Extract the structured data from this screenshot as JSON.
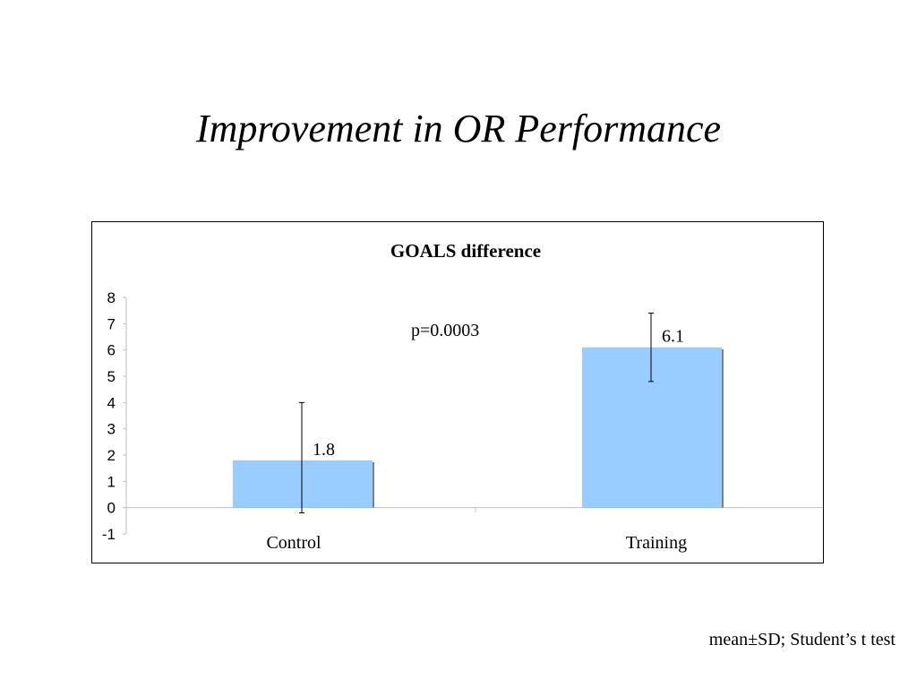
{
  "slide": {
    "title": "Improvement in OR Performance",
    "footnote": "mean±SD; Student’s t test"
  },
  "chart_data": {
    "type": "bar",
    "title": "GOALS difference",
    "categories": [
      "Control",
      "Training"
    ],
    "values": [
      1.8,
      6.1
    ],
    "value_labels": [
      "1.8",
      "6.1"
    ],
    "error_bars": [
      {
        "low": -0.2,
        "high": 4.0
      },
      {
        "low": 4.8,
        "high": 7.4
      }
    ],
    "annotation": "p=0.0003",
    "ylim": [
      -1,
      8
    ],
    "y_ticks": [
      "-1",
      "0",
      "1",
      "2",
      "3",
      "4",
      "5",
      "6",
      "7",
      "8"
    ],
    "grid": false,
    "legend": "none",
    "bar_color": "#99ccff",
    "bar_shadow_color": "#7f7f7f",
    "axis_color": "#bfbfbf"
  }
}
